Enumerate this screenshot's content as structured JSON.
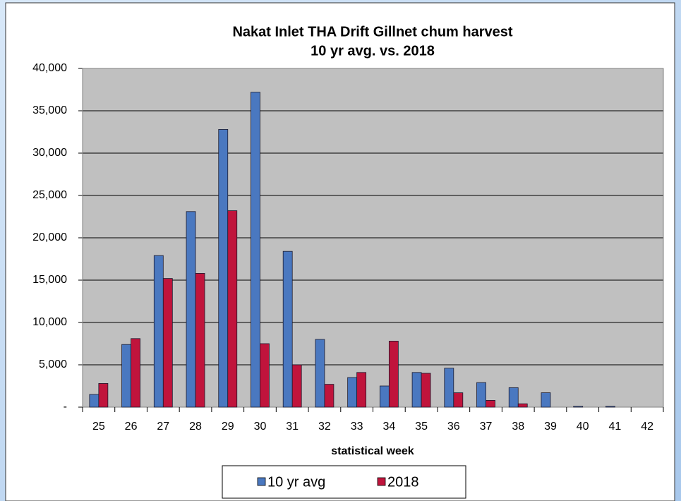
{
  "chart_data": {
    "type": "bar",
    "title": "Nakat Inlet THA Drift Gillnet chum harvest",
    "subtitle": "10 yr avg. vs. 2018",
    "x_label": "statistical week",
    "categories": [
      "25",
      "26",
      "27",
      "28",
      "29",
      "30",
      "31",
      "32",
      "33",
      "34",
      "35",
      "36",
      "37",
      "38",
      "39",
      "40",
      "41",
      "42"
    ],
    "series": [
      {
        "name": "10 yr avg",
        "color": "#4a78c0",
        "values": [
          1500,
          7400,
          17900,
          23100,
          32800,
          37200,
          18400,
          8000,
          3500,
          2500,
          4100,
          4600,
          2900,
          2300,
          1700,
          100,
          100,
          0
        ]
      },
      {
        "name": "2018",
        "color": "#c0143c",
        "values": [
          2800,
          8100,
          15200,
          15800,
          23200,
          7500,
          5000,
          2700,
          4100,
          7800,
          4000,
          1700,
          800,
          400,
          0,
          0,
          0,
          0
        ]
      }
    ],
    "ylim": [
      0,
      40000
    ],
    "yticks": [
      {
        "value": 0,
        "label": "-"
      },
      {
        "value": 5000,
        "label": "5,000"
      },
      {
        "value": 10000,
        "label": "10,000"
      },
      {
        "value": 15000,
        "label": "15,000"
      },
      {
        "value": 20000,
        "label": "20,000"
      },
      {
        "value": 25000,
        "label": "25,000"
      },
      {
        "value": 30000,
        "label": "30,000"
      },
      {
        "value": 35000,
        "label": "35,000"
      },
      {
        "value": 40000,
        "label": "40,000"
      }
    ],
    "grid": true,
    "legend": "bottom"
  }
}
